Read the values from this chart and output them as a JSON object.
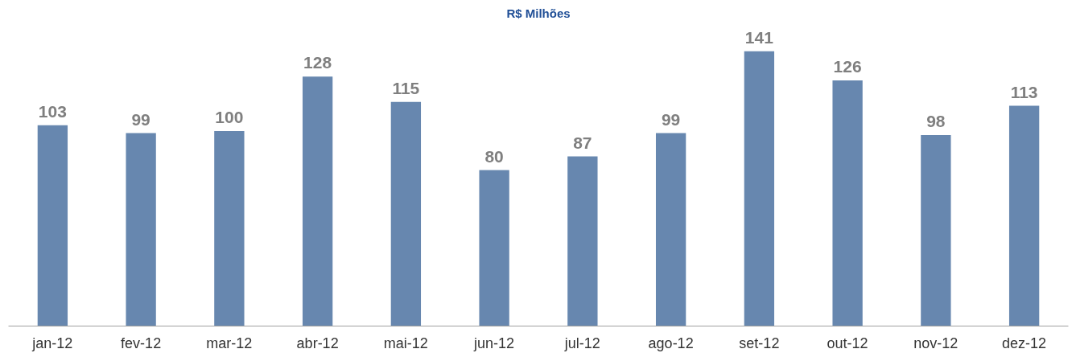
{
  "chart_data": {
    "type": "bar",
    "subtitle": "R$ Milhões",
    "categories": [
      "jan-12",
      "fev-12",
      "mar-12",
      "abr-12",
      "mai-12",
      "jun-12",
      "jul-12",
      "ago-12",
      "set-12",
      "out-12",
      "nov-12",
      "dez-12"
    ],
    "values": [
      103,
      99,
      100,
      128,
      115,
      80,
      87,
      99,
      141,
      126,
      98,
      113
    ],
    "color": "#6787af",
    "data_labels": true,
    "tick_labels": "x",
    "grid": false
  }
}
